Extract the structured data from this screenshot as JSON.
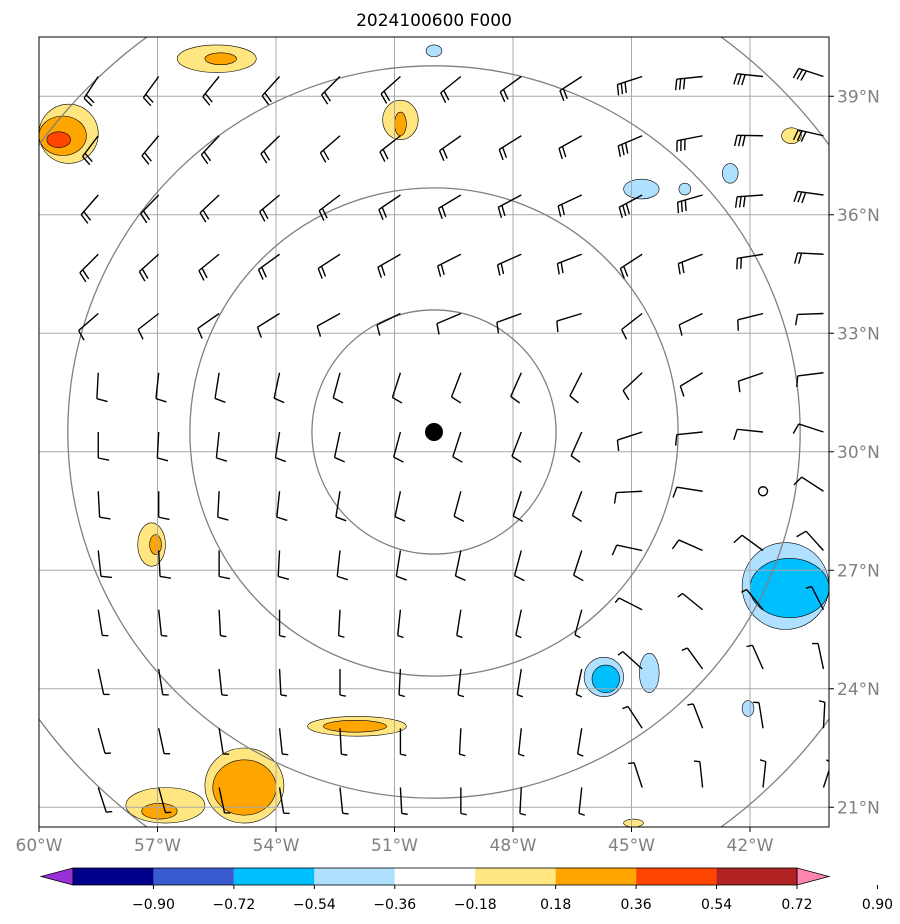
{
  "chart_data": {
    "type": "map",
    "title": "2024100600 F000",
    "extent": {
      "lon": [
        -60,
        -40
      ],
      "lat": [
        20.5,
        40.5
      ]
    },
    "x_ticks": [
      {
        "value": -60,
        "label": "60°W"
      },
      {
        "value": -57,
        "label": "57°W"
      },
      {
        "value": -54,
        "label": "54°W"
      },
      {
        "value": -51,
        "label": "51°W"
      },
      {
        "value": -48,
        "label": "48°W"
      },
      {
        "value": -45,
        "label": "45°W"
      },
      {
        "value": -42,
        "label": "42°W"
      }
    ],
    "y_ticks": [
      {
        "value": 21,
        "label": "21°N"
      },
      {
        "value": 24,
        "label": "24°N"
      },
      {
        "value": 27,
        "label": "27°N"
      },
      {
        "value": 30,
        "label": "30°N"
      },
      {
        "value": 33,
        "label": "33°N"
      },
      {
        "value": 36,
        "label": "36°N"
      },
      {
        "value": 39,
        "label": "39°N"
      }
    ],
    "grid": true,
    "center": {
      "lon": -50,
      "lat": 30.5
    },
    "range_rings_deg": [
      3,
      6,
      9,
      12
    ],
    "colorbar": {
      "orientation": "horizontal",
      "placement": "bottom",
      "tick_labels": [
        "−0.90",
        "−0.72",
        "−0.54",
        "−0.36",
        "−0.18",
        "0.18",
        "0.36",
        "0.54",
        "0.72",
        "0.90"
      ],
      "colors": [
        "#9b30d9",
        "#00008b",
        "#3a5bd0",
        "#00bfff",
        "#b0e0ff",
        "#ffffff",
        "#ffe680",
        "#ffa500",
        "#ff4500",
        "#b22222",
        "#ff85b0"
      ],
      "extend": "both"
    },
    "shaded_regions": [
      {
        "level": "0.36",
        "color": "#ffe680",
        "lon": [
          -56.5,
          -54.5
        ],
        "lat": [
          39.6,
          40.3
        ]
      },
      {
        "level": "0.54",
        "color": "#ffa500",
        "lon": [
          -55.8,
          -55.0
        ],
        "lat": [
          39.8,
          40.1
        ]
      },
      {
        "level": "0.36",
        "color": "#ffe680",
        "lon": [
          -60,
          -58.5
        ],
        "lat": [
          37.3,
          38.8
        ]
      },
      {
        "level": "0.54",
        "color": "#ffa500",
        "lon": [
          -60,
          -58.8
        ],
        "lat": [
          37.5,
          38.5
        ]
      },
      {
        "level": "0.72",
        "color": "#ff4500",
        "lon": [
          -59.8,
          -59.2
        ],
        "lat": [
          37.7,
          38.1
        ]
      },
      {
        "level": "0.36",
        "color": "#ffe680",
        "lon": [
          -51.3,
          -50.4
        ],
        "lat": [
          37.9,
          38.9
        ]
      },
      {
        "level": "0.54",
        "color": "#ffa500",
        "lon": [
          -51.0,
          -50.7
        ],
        "lat": [
          38.0,
          38.6
        ]
      },
      {
        "level": "-0.36",
        "color": "#b0e0ff",
        "lon": [
          -50.2,
          -49.8
        ],
        "lat": [
          40.0,
          40.3
        ]
      },
      {
        "level": "-0.36",
        "color": "#b0e0ff",
        "lon": [
          -45.2,
          -44.3
        ],
        "lat": [
          36.4,
          36.9
        ]
      },
      {
        "level": "-0.36",
        "color": "#b0e0ff",
        "lon": [
          -43.8,
          -43.5
        ],
        "lat": [
          36.5,
          36.8
        ]
      },
      {
        "level": "-0.36",
        "color": "#b0e0ff",
        "lon": [
          -42.7,
          -42.3
        ],
        "lat": [
          36.8,
          37.3
        ]
      },
      {
        "level": "0.36",
        "color": "#ffe680",
        "lon": [
          -41.2,
          -40.7
        ],
        "lat": [
          37.8,
          38.2
        ]
      },
      {
        "level": "0.36",
        "color": "#ffe680",
        "lon": [
          -57.5,
          -56.8
        ],
        "lat": [
          27.1,
          28.2
        ]
      },
      {
        "level": "0.54",
        "color": "#ffa500",
        "lon": [
          -57.2,
          -56.9
        ],
        "lat": [
          27.4,
          27.9
        ]
      },
      {
        "level": "-0.36",
        "color": "#b0e0ff",
        "lon": [
          -42.2,
          -40
        ],
        "lat": [
          25.5,
          27.7
        ]
      },
      {
        "level": "-0.54",
        "color": "#00bfff",
        "lon": [
          -42.0,
          -40
        ],
        "lat": [
          25.8,
          27.3
        ]
      },
      {
        "level": "-0.36",
        "color": "#b0e0ff",
        "lon": [
          -46.2,
          -45.2
        ],
        "lat": [
          23.8,
          24.8
        ]
      },
      {
        "level": "-0.54",
        "color": "#00bfff",
        "lon": [
          -46.0,
          -45.3
        ],
        "lat": [
          23.9,
          24.6
        ]
      },
      {
        "level": "-0.36",
        "color": "#b0e0ff",
        "lon": [
          -44.8,
          -44.3
        ],
        "lat": [
          23.9,
          24.9
        ]
      },
      {
        "level": "-0.36",
        "color": "#b0e0ff",
        "lon": [
          -42.2,
          -41.9
        ],
        "lat": [
          23.3,
          23.7
        ]
      },
      {
        "level": "0.36",
        "color": "#ffe680",
        "lon": [
          -53.2,
          -50.7
        ],
        "lat": [
          22.8,
          23.3
        ]
      },
      {
        "level": "0.54",
        "color": "#ffa500",
        "lon": [
          -52.8,
          -51.2
        ],
        "lat": [
          22.9,
          23.2
        ]
      },
      {
        "level": "0.36",
        "color": "#ffe680",
        "lon": [
          -57.8,
          -55.8
        ],
        "lat": [
          20.6,
          21.5
        ]
      },
      {
        "level": "0.36",
        "color": "#ffe680",
        "lon": [
          -55.8,
          -53.8
        ],
        "lat": [
          20.6,
          22.5
        ]
      },
      {
        "level": "0.54",
        "color": "#ffa500",
        "lon": [
          -55.6,
          -54.0
        ],
        "lat": [
          20.8,
          22.2
        ]
      },
      {
        "level": "0.54",
        "color": "#ffa500",
        "lon": [
          -57.4,
          -56.5
        ],
        "lat": [
          20.7,
          21.1
        ]
      },
      {
        "level": "0.36",
        "color": "#ffe680",
        "lon": [
          -45.2,
          -44.7
        ],
        "lat": [
          20.5,
          20.7
        ]
      }
    ]
  }
}
